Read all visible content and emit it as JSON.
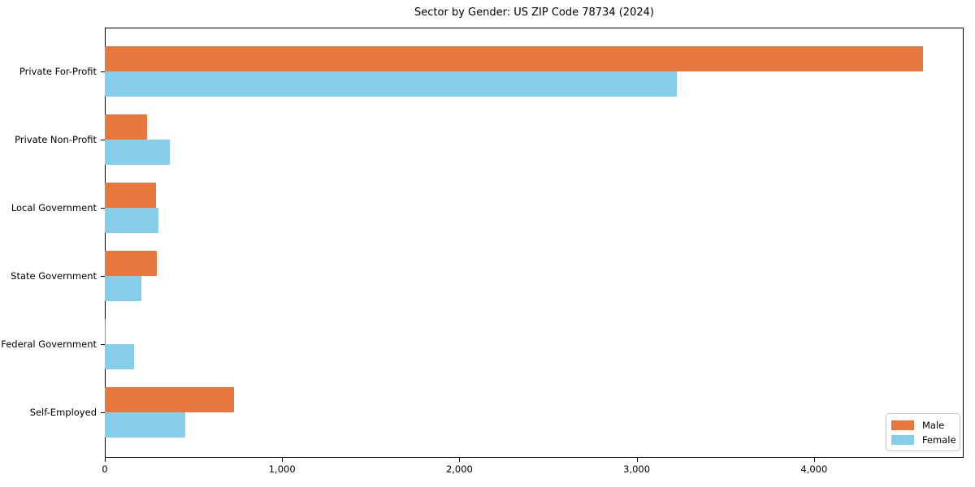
{
  "chart_data": {
    "type": "bar",
    "orientation": "horizontal",
    "title": "Sector by Gender: US ZIP Code 78734 (2024)",
    "categories": [
      "Private For-Profit",
      "Private Non-Profit",
      "Local Government",
      "State Government",
      "Federal Government",
      "Self-Employed"
    ],
    "series": [
      {
        "name": "Male",
        "color": "#e8773d",
        "values": [
          4613,
          240,
          291,
          293,
          6,
          728
        ]
      },
      {
        "name": "Female",
        "color": "#87ceeb",
        "values": [
          3227,
          366,
          301,
          206,
          163,
          453
        ]
      }
    ],
    "xlabel": "",
    "ylabel": "",
    "xlim": [
      0,
      4844
    ],
    "xticks": [
      0,
      1000,
      2000,
      3000,
      4000
    ],
    "xtick_labels": [
      "0",
      "1,000",
      "2,000",
      "3,000",
      "4,000"
    ],
    "grid": false,
    "legend_position": "lower right",
    "legend_labels": [
      "Male",
      "Female"
    ]
  }
}
